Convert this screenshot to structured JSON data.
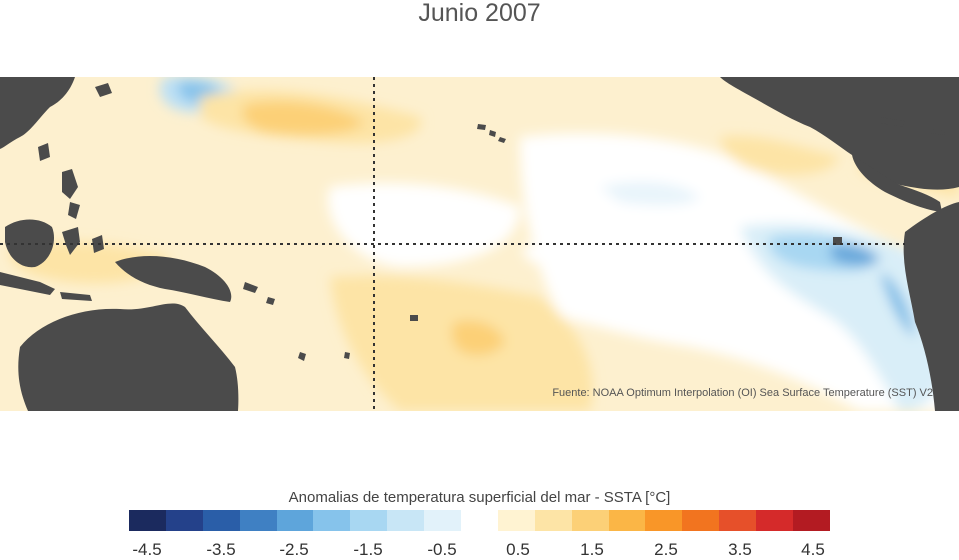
{
  "title": "Junio 2007",
  "source": "Fuente: NOAA Optimum Interpolation (OI) Sea Surface Temperature (SST) V2",
  "legend": {
    "title": "Anomalias de temperatura superficial del mar - SSTA  [°C]",
    "ticks": [
      "-4.5",
      "-3.5",
      "-2.5",
      "-1.5",
      "-0.5",
      "0.5",
      "1.5",
      "2.5",
      "3.5",
      "4.5"
    ],
    "colors": [
      "#1b2a5e",
      "#24418a",
      "#2a5ea8",
      "#3f80c3",
      "#5ea5db",
      "#86c3eb",
      "#a8d7f2",
      "#c8e6f6",
      "#e2f2fa",
      "#ffffff",
      "#fff3d2",
      "#fde4a6",
      "#fcd077",
      "#fbb646",
      "#f99628",
      "#f2741f",
      "#e6502a",
      "#d52a2a",
      "#b31b22"
    ]
  },
  "map": {
    "land_color": "#4b4b4b",
    "ocean_neutral_color": "#ffffff",
    "reference_lines": [
      "equator",
      "dateline"
    ]
  }
}
